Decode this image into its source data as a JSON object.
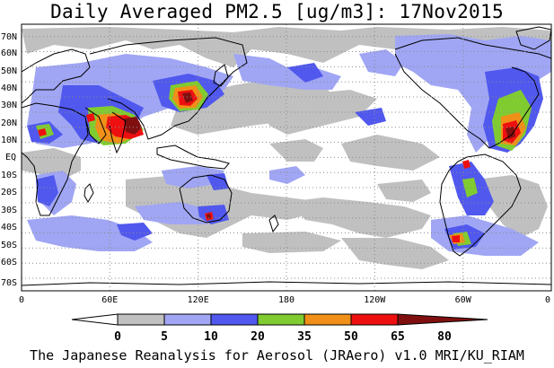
{
  "title": "Daily Averaged PM2.5 [ug/m3]: 17Nov2015",
  "footer": "The Japanese Reanalysis for Aerosol (JRAero) v1.0 MRI/KU_RIAM",
  "map": {
    "lat_labels": [
      "70N",
      "60N",
      "50N",
      "40N",
      "30N",
      "20N",
      "10N",
      "EQ",
      "10S",
      "20S",
      "30S",
      "40S",
      "50S",
      "60S",
      "70S"
    ],
    "lon_labels": [
      "0",
      "60E",
      "120E",
      "180",
      "120W",
      "60W",
      "0"
    ]
  },
  "legend": {
    "bins": [
      "0",
      "5",
      "10",
      "20",
      "35",
      "50",
      "65",
      "80"
    ],
    "colors": [
      "#ffffff",
      "#c0c0c0",
      "#a0a6f4",
      "#5058ee",
      "#80cc30",
      "#f09018",
      "#ee1010",
      "#801010"
    ]
  },
  "colors": {
    "land_outline": "#000000",
    "grid": "#8c8c8c"
  }
}
